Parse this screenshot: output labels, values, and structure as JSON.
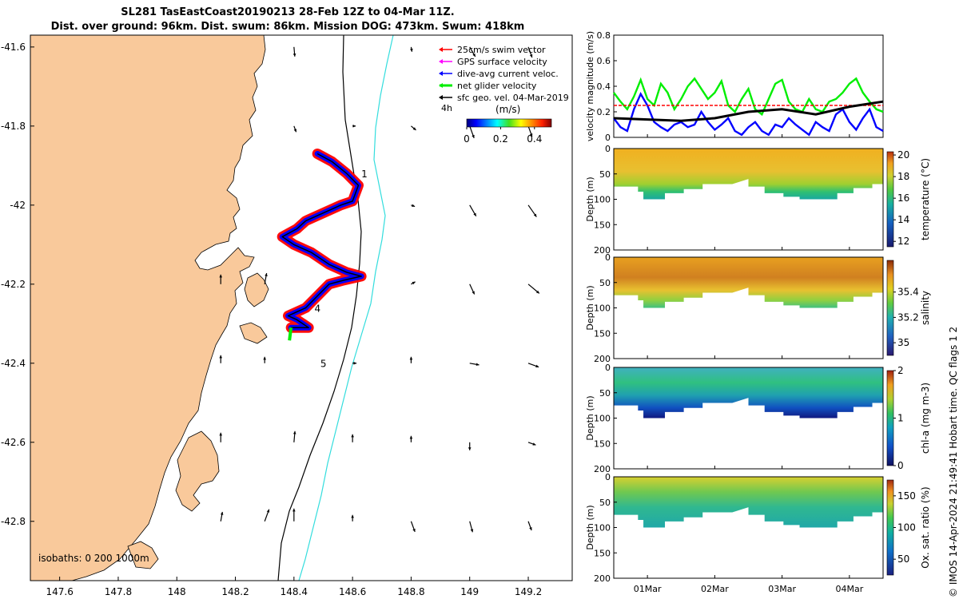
{
  "title": {
    "line1": "SL281 TasEastCoast20190213 28-Feb 12Z to 04-Mar 11Z.",
    "line2": "Dist. over ground: 96km. Dist. swum: 86km. Mission DOG: 473km. Swum: 418km"
  },
  "credit": "© IMOS 14-Apr-2024 21:49:41 Hobart time. QC flags 1  2",
  "colors": {
    "land": "#f9c99b",
    "isobath_200": "#000000",
    "isobath_1000": "#33dddd",
    "swim": "#ff0000",
    "gps": "#ff00ff",
    "dive_avg": "#0000ff",
    "net": "#00ee00",
    "geo": "#000000"
  },
  "chart_data": [
    {
      "type": "map",
      "name": "glider-track-map",
      "xlim": [
        147.5,
        149.35
      ],
      "ylim": [
        -42.95,
        -41.57
      ],
      "x_ticks": [
        147.6,
        147.8,
        148,
        148.2,
        148.4,
        148.6,
        148.8,
        149,
        149.2
      ],
      "x_tick_labels": [
        "147.6",
        "147.8",
        "148",
        "148.2",
        "148.4",
        "148.6",
        "148.8",
        "149",
        "149.2"
      ],
      "y_ticks": [
        -41.6,
        -41.8,
        -42,
        -42.2,
        -42.4,
        -42.6,
        -42.8
      ],
      "y_tick_labels": [
        "-41.6",
        "-41.8",
        "-42",
        "-42.2",
        "-42.4",
        "-42.6",
        "-42.8"
      ],
      "legend": {
        "position": "top-right",
        "entries": [
          {
            "label": "25cm/s swim vector",
            "color": "#ff0000"
          },
          {
            "label": "GPS surface velocity",
            "color": "#ff00ff"
          },
          {
            "label": "dive-avg current veloc.",
            "color": "#0000ff"
          },
          {
            "label": "net glider velocity",
            "color": "#00ee00"
          },
          {
            "label": "sfc geo. vel. 04-Mar-2019",
            "color": "#000000"
          }
        ],
        "extra_label": "4h"
      },
      "colorbar": {
        "title": "(m/s)",
        "ticks": [
          0,
          0.2,
          0.4
        ],
        "tick_labels": [
          "0",
          "0.2",
          "0.4"
        ],
        "range": [
          0,
          0.5
        ]
      },
      "isobath_label": "isobaths: 0   200  1000m",
      "track": [
        [
          148.48,
          -41.87
        ],
        [
          148.53,
          -41.89
        ],
        [
          148.58,
          -41.92
        ],
        [
          148.62,
          -41.95
        ],
        [
          148.6,
          -41.99
        ],
        [
          148.56,
          -42.0
        ],
        [
          148.5,
          -42.02
        ],
        [
          148.44,
          -42.04
        ],
        [
          148.41,
          -42.06
        ],
        [
          148.36,
          -42.08
        ],
        [
          148.4,
          -42.1
        ],
        [
          148.46,
          -42.12
        ],
        [
          148.52,
          -42.15
        ],
        [
          148.58,
          -42.17
        ],
        [
          148.63,
          -42.18
        ],
        [
          148.57,
          -42.19
        ],
        [
          148.52,
          -42.2
        ],
        [
          148.48,
          -42.23
        ],
        [
          148.44,
          -42.26
        ],
        [
          148.38,
          -42.28
        ],
        [
          148.41,
          -42.29
        ],
        [
          148.45,
          -42.31
        ],
        [
          148.39,
          -42.31
        ]
      ],
      "day_markers": [
        {
          "label": "1",
          "lon": 148.63,
          "lat": -41.93
        },
        {
          "label": "4",
          "lon": 148.47,
          "lat": -42.27
        },
        {
          "label": "5",
          "lon": 148.49,
          "lat": -42.41
        }
      ],
      "geo_vectors": [
        {
          "lon": 148.4,
          "lat": -41.6,
          "dir": 175,
          "len": 12
        },
        {
          "lon": 148.8,
          "lat": -41.6,
          "dir": 170,
          "len": 6
        },
        {
          "lon": 149.0,
          "lat": -41.6,
          "dir": 150,
          "len": 14
        },
        {
          "lon": 149.2,
          "lat": -41.6,
          "dir": 160,
          "len": 14
        },
        {
          "lon": 148.4,
          "lat": -41.8,
          "dir": 160,
          "len": 8
        },
        {
          "lon": 148.6,
          "lat": -41.8,
          "dir": 90,
          "len": 4
        },
        {
          "lon": 148.8,
          "lat": -41.8,
          "dir": 130,
          "len": 8
        },
        {
          "lon": 149.0,
          "lat": -41.8,
          "dir": 160,
          "len": 16
        },
        {
          "lon": 149.2,
          "lat": -41.8,
          "dir": 160,
          "len": 14
        },
        {
          "lon": 148.8,
          "lat": -42.0,
          "dir": 110,
          "len": 5
        },
        {
          "lon": 149.0,
          "lat": -42.0,
          "dir": 150,
          "len": 16
        },
        {
          "lon": 149.2,
          "lat": -42.0,
          "dir": 145,
          "len": 18
        },
        {
          "lon": 148.15,
          "lat": -42.2,
          "dir": 0,
          "len": 12
        },
        {
          "lon": 148.3,
          "lat": -42.2,
          "dir": 10,
          "len": 14
        },
        {
          "lon": 148.8,
          "lat": -42.2,
          "dir": 60,
          "len": 6
        },
        {
          "lon": 149.0,
          "lat": -42.2,
          "dir": 155,
          "len": 14
        },
        {
          "lon": 149.2,
          "lat": -42.2,
          "dir": 130,
          "len": 18
        },
        {
          "lon": 148.15,
          "lat": -42.4,
          "dir": 0,
          "len": 10
        },
        {
          "lon": 148.3,
          "lat": -42.4,
          "dir": 0,
          "len": 8
        },
        {
          "lon": 148.6,
          "lat": -42.4,
          "dir": 90,
          "len": 5
        },
        {
          "lon": 148.8,
          "lat": -42.4,
          "dir": 0,
          "len": 8
        },
        {
          "lon": 149.0,
          "lat": -42.4,
          "dir": 100,
          "len": 12
        },
        {
          "lon": 149.2,
          "lat": -42.4,
          "dir": 110,
          "len": 14
        },
        {
          "lon": 148.15,
          "lat": -42.6,
          "dir": 0,
          "len": 12
        },
        {
          "lon": 148.4,
          "lat": -42.6,
          "dir": 5,
          "len": 14
        },
        {
          "lon": 148.6,
          "lat": -42.6,
          "dir": 0,
          "len": 10
        },
        {
          "lon": 148.8,
          "lat": -42.6,
          "dir": 0,
          "len": 8
        },
        {
          "lon": 149.0,
          "lat": -42.6,
          "dir": 180,
          "len": 10
        },
        {
          "lon": 149.2,
          "lat": -42.6,
          "dir": 110,
          "len": 10
        },
        {
          "lon": 148.15,
          "lat": -42.8,
          "dir": 10,
          "len": 12
        },
        {
          "lon": 148.3,
          "lat": -42.8,
          "dir": 20,
          "len": 16
        },
        {
          "lon": 148.4,
          "lat": -42.8,
          "dir": 0,
          "len": 16
        },
        {
          "lon": 148.6,
          "lat": -42.8,
          "dir": 0,
          "len": 8
        },
        {
          "lon": 148.8,
          "lat": -42.8,
          "dir": 160,
          "len": 14
        },
        {
          "lon": 149.0,
          "lat": -42.8,
          "dir": 165,
          "len": 14
        },
        {
          "lon": 149.2,
          "lat": -42.8,
          "dir": 160,
          "len": 12
        }
      ]
    },
    {
      "type": "line",
      "name": "velocity-timeseries",
      "ylabel": "velocity magnitude (m/s)",
      "ylim": [
        0,
        0.8
      ],
      "y_ticks": [
        0,
        0.2,
        0.4,
        0.6,
        0.8
      ],
      "y_tick_labels": [
        "0",
        "0.2",
        "0.4",
        "0.6",
        "0.8"
      ],
      "xlim": [
        0,
        4
      ],
      "series": [
        {
          "name": "net glider velocity",
          "color": "#00ee00",
          "x": [
            0,
            0.1,
            0.2,
            0.3,
            0.4,
            0.5,
            0.6,
            0.7,
            0.8,
            0.9,
            1.0,
            1.1,
            1.2,
            1.3,
            1.4,
            1.5,
            1.6,
            1.7,
            1.8,
            1.9,
            2.0,
            2.1,
            2.2,
            2.3,
            2.4,
            2.5,
            2.6,
            2.7,
            2.8,
            2.9,
            3.0,
            3.1,
            3.2,
            3.3,
            3.4,
            3.5,
            3.6,
            3.7,
            3.8,
            3.9,
            4.0
          ],
          "values": [
            0.35,
            0.28,
            0.22,
            0.32,
            0.45,
            0.3,
            0.25,
            0.42,
            0.35,
            0.22,
            0.3,
            0.4,
            0.46,
            0.38,
            0.3,
            0.35,
            0.44,
            0.25,
            0.2,
            0.3,
            0.38,
            0.22,
            0.18,
            0.3,
            0.42,
            0.45,
            0.28,
            0.22,
            0.2,
            0.3,
            0.22,
            0.2,
            0.28,
            0.3,
            0.35,
            0.42,
            0.46,
            0.35,
            0.28,
            0.22,
            0.2
          ]
        },
        {
          "name": "dive-avg current veloc.",
          "color": "#0000ff",
          "x": [
            0,
            0.1,
            0.2,
            0.3,
            0.4,
            0.5,
            0.6,
            0.7,
            0.8,
            0.9,
            1.0,
            1.1,
            1.2,
            1.3,
            1.4,
            1.5,
            1.6,
            1.7,
            1.8,
            1.9,
            2.0,
            2.1,
            2.2,
            2.3,
            2.4,
            2.5,
            2.6,
            2.7,
            2.8,
            2.9,
            3.0,
            3.1,
            3.2,
            3.3,
            3.4,
            3.5,
            3.6,
            3.7,
            3.8,
            3.9,
            4.0
          ],
          "values": [
            0.15,
            0.08,
            0.05,
            0.22,
            0.34,
            0.25,
            0.12,
            0.08,
            0.05,
            0.1,
            0.12,
            0.08,
            0.1,
            0.2,
            0.12,
            0.06,
            0.1,
            0.15,
            0.05,
            0.02,
            0.08,
            0.12,
            0.05,
            0.02,
            0.1,
            0.08,
            0.15,
            0.1,
            0.06,
            0.02,
            0.12,
            0.08,
            0.05,
            0.18,
            0.22,
            0.12,
            0.06,
            0.15,
            0.22,
            0.08,
            0.05
          ]
        },
        {
          "name": "swim vector",
          "color": "#ff0000",
          "x": [
            0,
            1,
            2,
            3,
            4
          ],
          "values": [
            0.25,
            0.25,
            0.25,
            0.25,
            0.25
          ]
        },
        {
          "name": "sfc geo. vel.",
          "color": "#000000",
          "x": [
            0,
            0.5,
            1,
            1.5,
            2,
            2.5,
            3,
            3.5,
            4
          ],
          "values": [
            0.15,
            0.14,
            0.13,
            0.15,
            0.2,
            0.22,
            0.18,
            0.24,
            0.28
          ]
        }
      ]
    },
    {
      "type": "heatmap",
      "name": "temperature-section",
      "ylabel": "Depth (m)",
      "clabel": "temperature (°C)",
      "ylim": [
        200,
        0
      ],
      "y_ticks": [
        0,
        50,
        100,
        150,
        200
      ],
      "y_tick_labels": [
        "0",
        "50",
        "100",
        "150",
        "200"
      ],
      "clim": [
        11.5,
        20.3
      ],
      "c_ticks": [
        12,
        14,
        16,
        18,
        20
      ],
      "c_tick_labels": [
        "12",
        "14",
        "16",
        "18",
        "20"
      ],
      "surface_value": 18.2,
      "deep_value": 13.0
    },
    {
      "type": "heatmap",
      "name": "salinity-section",
      "ylabel": "Depth (m)",
      "clabel": "salinity",
      "ylim": [
        200,
        0
      ],
      "y_ticks": [
        0,
        50,
        100,
        150,
        200
      ],
      "y_tick_labels": [
        "0",
        "50",
        "100",
        "150",
        "200"
      ],
      "clim": [
        34.9,
        35.65
      ],
      "c_ticks": [
        35,
        35.2,
        35.4
      ],
      "c_tick_labels": [
        "35",
        "35.2",
        "35.4"
      ],
      "surface_value": 35.5,
      "deep_value": 35.3
    },
    {
      "type": "heatmap",
      "name": "chla-section",
      "ylabel": "Depth (m)",
      "clabel": "chl-a (mg m-3)",
      "ylim": [
        200,
        0
      ],
      "y_ticks": [
        0,
        50,
        100,
        150,
        200
      ],
      "y_tick_labels": [
        "0",
        "50",
        "100",
        "150",
        "200"
      ],
      "clim": [
        0,
        2
      ],
      "c_ticks": [
        0,
        1,
        2
      ],
      "c_tick_labels": [
        "0",
        "1",
        "2"
      ],
      "surface_value": 1.0,
      "deep_value": 0.25
    },
    {
      "type": "heatmap",
      "name": "oxygen-section",
      "ylabel": "Depth (m)",
      "clabel": "Ox. sat. ratio (%)",
      "ylim": [
        200,
        0
      ],
      "y_ticks": [
        0,
        50,
        100,
        150,
        200
      ],
      "y_tick_labels": [
        "0",
        "50",
        "100",
        "150",
        "200"
      ],
      "clim": [
        25,
        175
      ],
      "c_ticks": [
        50,
        100,
        150
      ],
      "c_tick_labels": [
        "50",
        "100",
        "150"
      ],
      "surface_value": 115,
      "deep_value": 95
    }
  ],
  "time_axis": {
    "ticks": [
      0.5,
      1.5,
      2.5,
      3.5
    ],
    "labels": [
      "01Mar",
      "02Mar",
      "03Mar",
      "04Mar"
    ]
  }
}
